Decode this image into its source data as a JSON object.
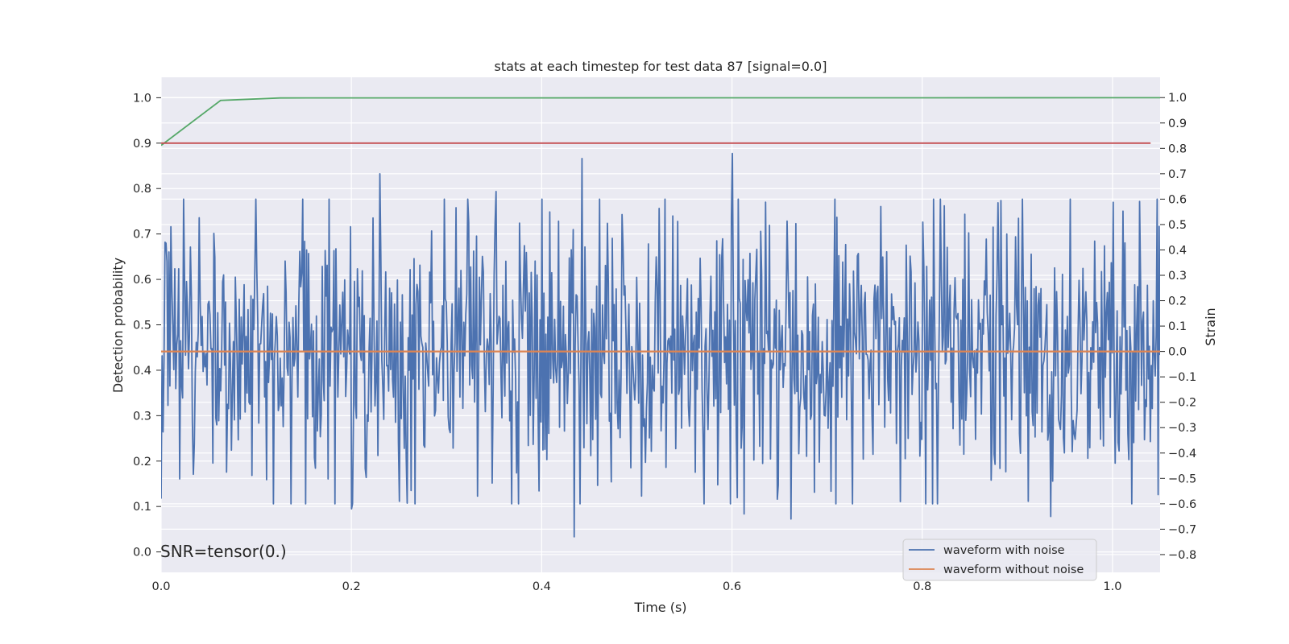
{
  "chart_data": {
    "type": "line",
    "title": "stats at each timestep for test data 87 [signal=0.0]",
    "xlabel": "Time (s)",
    "ylabel_left": "Detection probability",
    "ylabel_right": "Strain",
    "xlim": [
      0.0,
      1.05
    ],
    "ylim_left": [
      -0.045,
      1.045
    ],
    "ylim_right": [
      -0.87,
      1.08
    ],
    "x_ticks": [
      0.0,
      0.2,
      0.4,
      0.6,
      0.8,
      1.0
    ],
    "x_tick_labels": [
      "0.0",
      "0.2",
      "0.4",
      "0.6",
      "0.8",
      "1.0"
    ],
    "y_left_ticks": [
      0.0,
      0.1,
      0.2,
      0.3,
      0.4,
      0.5,
      0.6,
      0.7,
      0.8,
      0.9,
      1.0
    ],
    "y_left_tick_labels": [
      "0.0",
      "0.1",
      "0.2",
      "0.3",
      "0.4",
      "0.5",
      "0.6",
      "0.7",
      "0.8",
      "0.9",
      "1.0"
    ],
    "y_right_ticks": [
      -0.8,
      -0.7,
      -0.6,
      -0.5,
      -0.4,
      -0.3,
      -0.2,
      -0.1,
      0.0,
      0.1,
      0.2,
      0.3,
      0.4,
      0.5,
      0.6,
      0.7,
      0.8,
      0.9,
      1.0
    ],
    "y_right_tick_labels": [
      "−0.8",
      "−0.7",
      "−0.6",
      "−0.5",
      "−0.4",
      "−0.3",
      "−0.2",
      "−0.1",
      "0.0",
      "0.1",
      "0.2",
      "0.3",
      "0.4",
      "0.5",
      "0.6",
      "0.7",
      "0.8",
      "0.9",
      "1.0"
    ],
    "grid": true,
    "legend_position": "lower-right",
    "annotation": "SNR=tensor(0.)",
    "colors": {
      "background": "#eaeaf2",
      "grid": "#ffffff",
      "noisy": "#4c72b0",
      "clean": "#dd8452",
      "probability": "#55a868",
      "threshold": "#c44e52"
    },
    "series": [
      {
        "name": "waveform with noise",
        "axis": "right",
        "style": "noise",
        "x_range": [
          0.0,
          1.05
        ],
        "n_points": 1024,
        "mean": 0.0,
        "std": 0.27,
        "min": -0.73,
        "max": 0.8,
        "peaks": [
          {
            "x": 0.0,
            "y": -0.58
          },
          {
            "x": 0.024,
            "y": 0.6
          },
          {
            "x": 0.1,
            "y": 0.6
          },
          {
            "x": 0.2,
            "y": -0.62
          },
          {
            "x": 0.23,
            "y": 0.7
          },
          {
            "x": 0.25,
            "y": -0.59
          },
          {
            "x": 0.352,
            "y": 0.63
          },
          {
            "x": 0.434,
            "y": -0.73
          },
          {
            "x": 0.442,
            "y": 0.76
          },
          {
            "x": 0.6,
            "y": 0.78
          },
          {
            "x": 0.613,
            "y": -0.64
          },
          {
            "x": 0.662,
            "y": -0.66
          },
          {
            "x": 0.905,
            "y": 0.6
          },
          {
            "x": 0.911,
            "y": -0.59
          },
          {
            "x": 0.935,
            "y": -0.65
          }
        ]
      },
      {
        "name": "waveform without noise",
        "axis": "right",
        "x": [
          0.0,
          1.05
        ],
        "y": [
          0.0,
          0.0
        ]
      },
      {
        "axis": "left",
        "x": [
          0.0,
          0.0625,
          0.125,
          1.05
        ],
        "y": [
          0.895,
          0.994,
          0.9995,
          1.0
        ]
      },
      {
        "axis": "left",
        "x": [
          0.0,
          1.04
        ],
        "y": [
          0.9,
          0.9
        ]
      }
    ]
  }
}
